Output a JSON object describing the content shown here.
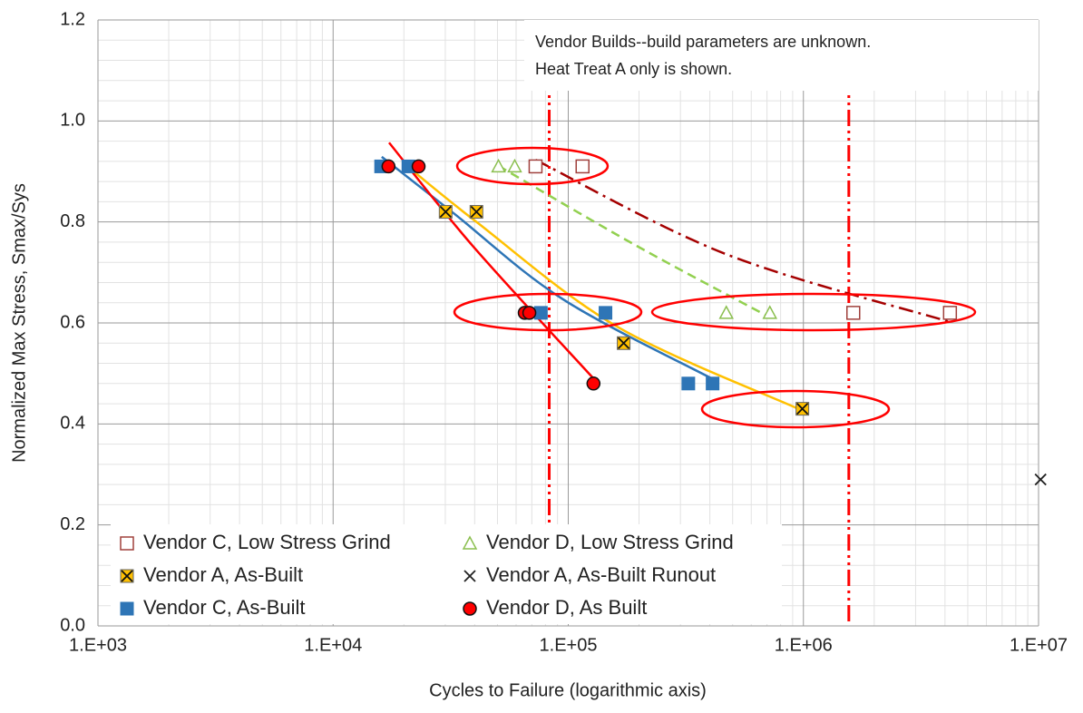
{
  "chart_data": {
    "type": "scatter",
    "x_label": "Cycles to Failure (logarithmic axis)",
    "y_label": "Normalized Max Stress, Smax/Sys",
    "x_log": true,
    "grid": true,
    "minor_grid": true,
    "legend": "lower left",
    "xlim": [
      1000,
      10000000
    ],
    "xticks": [
      {
        "value": 1000,
        "label": "1.E+03"
      },
      {
        "value": 10000,
        "label": "1.E+04"
      },
      {
        "value": 100000,
        "label": "1.E+05"
      },
      {
        "value": 1000000,
        "label": "1.E+06"
      },
      {
        "value": 10000000,
        "label": "1.E+07"
      }
    ],
    "ylim": [
      0,
      1.2
    ],
    "yticks": [
      {
        "value": 0,
        "label": "0.0"
      },
      0.2,
      0.4,
      0.6,
      0.8,
      {
        "value": 1,
        "label": "1.0"
      },
      1.2
    ],
    "annotations": [
      "Vendor Builds--build parameters are unknown.",
      "Heat Treat A only is shown."
    ],
    "series": [
      {
        "name": "Vendor C, Low Stress Grind",
        "color": "#a0403c",
        "marker": "square-open",
        "x": [
          72600,
          115000,
          1630000,
          4200000
        ],
        "values": [
          0.91,
          0.91,
          0.62,
          0.62
        ]
      },
      {
        "name": "Vendor D, Low Stress Grind",
        "color": "#8bbf4f",
        "marker": "triangle-open",
        "x": [
          50500,
          59200,
          470000,
          720000
        ],
        "values": [
          0.91,
          0.91,
          0.62,
          0.62
        ]
      },
      {
        "name": "Vendor A, As-Built",
        "color": "#ffc000",
        "marker": "square-x",
        "x": [
          30100,
          40700,
          172000,
          990000
        ],
        "values": [
          0.82,
          0.82,
          0.56,
          0.43
        ]
      },
      {
        "name": "Vendor A, As-Built Runout",
        "color": "#222222",
        "marker": "x",
        "x": [
          10200000
        ],
        "values": [
          0.29
        ]
      },
      {
        "name": "Vendor C, As-Built",
        "color": "#2e75b6",
        "marker": "square",
        "x": [
          16000,
          20900,
          76500,
          144000,
          324000,
          411000
        ],
        "values": [
          0.91,
          0.91,
          0.62,
          0.62,
          0.48,
          0.48
        ]
      },
      {
        "name": "Vendor D, As Built",
        "color": "#ff0000",
        "marker": "circle",
        "x": [
          17200,
          23100,
          65300,
          68300,
          128000
        ],
        "values": [
          0.91,
          0.91,
          0.62,
          0.62,
          0.48
        ]
      }
    ],
    "trendlines": [
      {
        "color": "#a50000",
        "dash": "16 6 3 6",
        "x": [
          72600,
          470000,
          4200000
        ],
        "values": [
          0.923,
          0.736,
          0.602
        ]
      },
      {
        "color": "#92d050",
        "dash": "10 6",
        "x": [
          50500,
          193000,
          720000
        ],
        "values": [
          0.911,
          0.754,
          0.611
        ]
      },
      {
        "color": "#ffc000",
        "dash": "",
        "x": [
          20000,
          40700,
          161000,
          940000
        ],
        "values": [
          0.916,
          0.8,
          0.593,
          0.431
        ]
      },
      {
        "color": "#2e75b6",
        "dash": "",
        "x": [
          16100,
          32600,
          94800,
          411000
        ],
        "values": [
          0.929,
          0.817,
          0.647,
          0.489
        ]
      },
      {
        "color": "#ff0000",
        "dash": "",
        "x": [
          17300,
          39000,
          128000
        ],
        "values": [
          0.957,
          0.754,
          0.49
        ]
      }
    ],
    "vlines": [
      {
        "color": "#ff0000",
        "x": 83000
      },
      {
        "color": "#ff0000",
        "x": 1560000
      }
    ]
  }
}
